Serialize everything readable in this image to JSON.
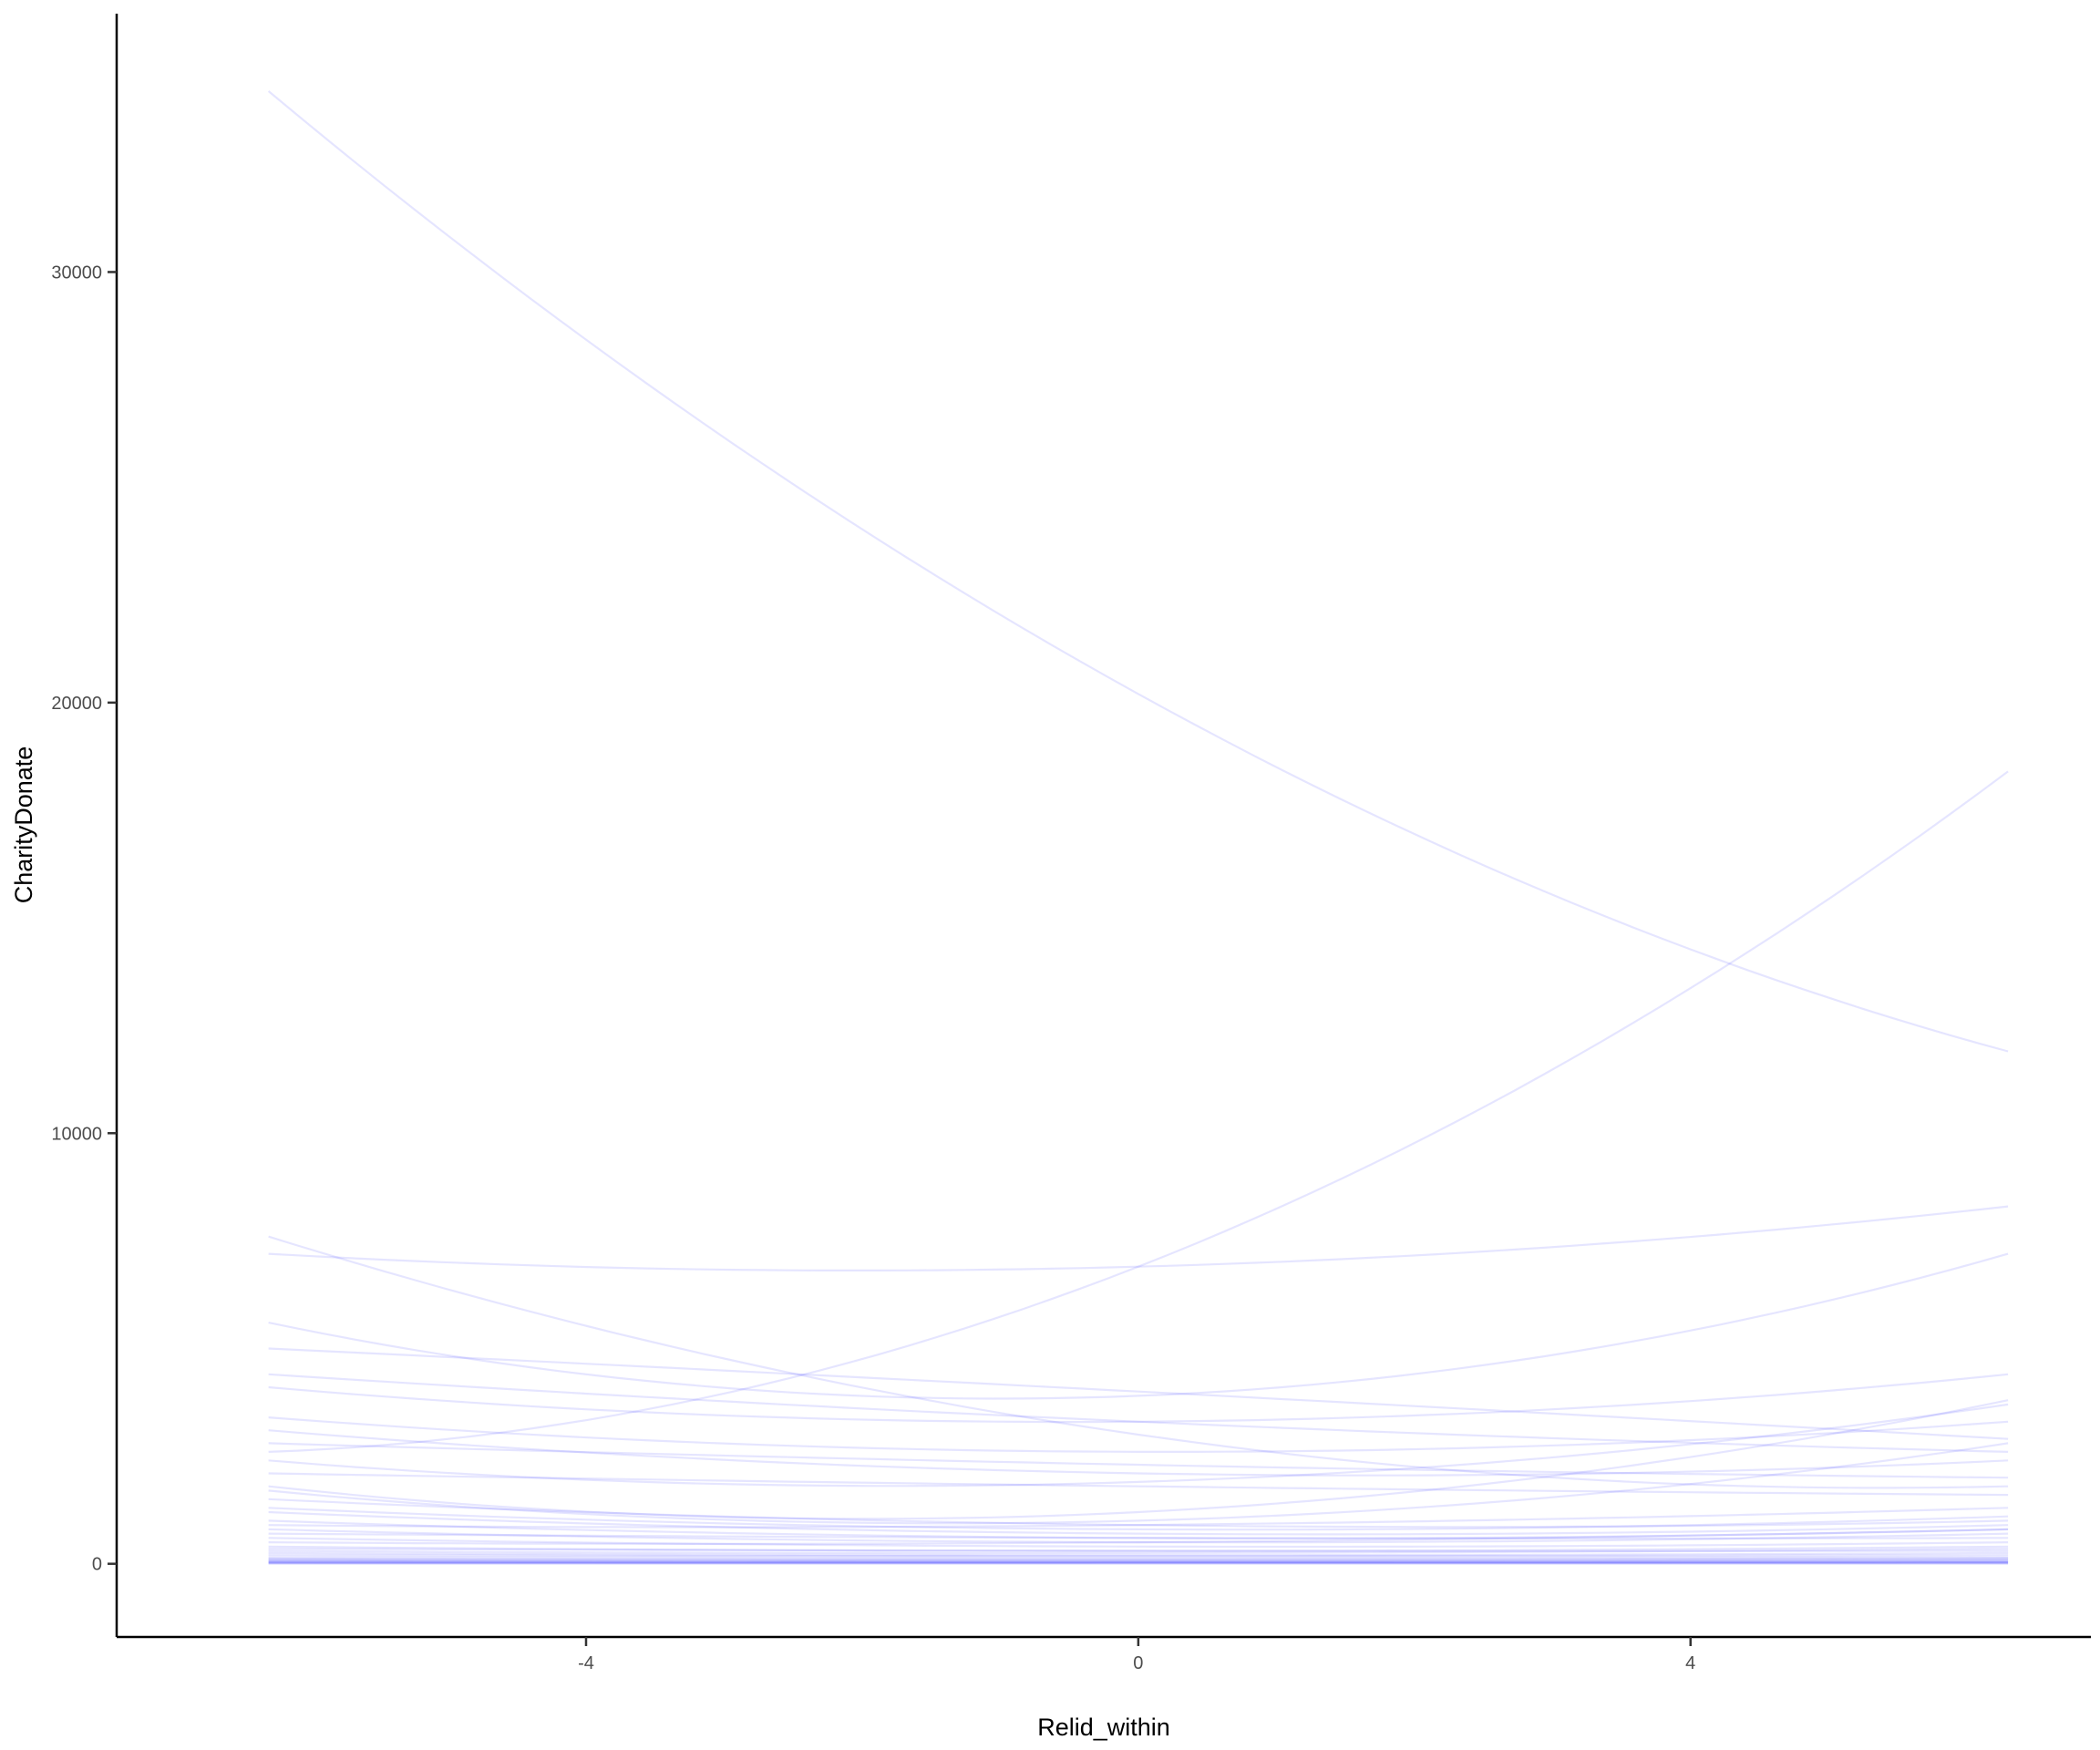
{
  "chart_data": {
    "type": "line",
    "title": "",
    "xlabel": "Relid_within",
    "ylabel": "CharityDonate",
    "xlim": [
      -7.4,
      6.9
    ],
    "ylim": [
      -1700,
      36000
    ],
    "x_ticks": [
      -4,
      0,
      4
    ],
    "y_ticks": [
      0,
      10000,
      20000,
      30000
    ],
    "x_tick_labels": [
      "-4",
      "0",
      "4"
    ],
    "y_tick_labels": [
      "0",
      "10000",
      "20000",
      "30000"
    ],
    "grid": false,
    "line_color": "#0000ff",
    "line_alpha": 0.1,
    "x_range": [
      -6.3,
      6.3
    ],
    "series": [
      {
        "name": "s1",
        "y_start": 34200,
        "y_mid": 20200,
        "y_end": 11900
      },
      {
        "name": "s2",
        "y_start": 2600,
        "y_mid": 6900,
        "y_end": 18400
      },
      {
        "name": "s3",
        "y_start": 7200,
        "y_mid": 6900,
        "y_end": 8300
      },
      {
        "name": "s4",
        "y_start": 5600,
        "y_mid": 3900,
        "y_end": 7200
      },
      {
        "name": "s5",
        "y_start": 7600,
        "y_mid": 3000,
        "y_end": 1800
      },
      {
        "name": "s6",
        "y_start": 5000,
        "y_mid": 4000,
        "y_end": 2900
      },
      {
        "name": "s7",
        "y_start": 4400,
        "y_mid": 3300,
        "y_end": 2600
      },
      {
        "name": "s8",
        "y_start": 4100,
        "y_mid": 3300,
        "y_end": 4400
      },
      {
        "name": "s9",
        "y_start": 3400,
        "y_mid": 2600,
        "y_end": 3300
      },
      {
        "name": "s10",
        "y_start": 3100,
        "y_mid": 2100,
        "y_end": 2400
      },
      {
        "name": "s11",
        "y_start": 2800,
        "y_mid": 2300,
        "y_end": 2000
      },
      {
        "name": "s12",
        "y_start": 2400,
        "y_mid": 1900,
        "y_end": 3700
      },
      {
        "name": "s13",
        "y_start": 2100,
        "y_mid": 1800,
        "y_end": 1600
      },
      {
        "name": "s14",
        "y_start": 1800,
        "y_mid": 1200,
        "y_end": 3800
      },
      {
        "name": "s15",
        "y_start": 1700,
        "y_mid": 1000,
        "y_end": 2800
      },
      {
        "name": "s16",
        "y_start": 1500,
        "y_mid": 900,
        "y_end": 1000
      },
      {
        "name": "s17",
        "y_start": 1300,
        "y_mid": 800,
        "y_end": 1100
      },
      {
        "name": "s18",
        "y_start": 1200,
        "y_mid": 700,
        "y_end": 900
      },
      {
        "name": "s19",
        "y_start": 1000,
        "y_mid": 600,
        "y_end": 800
      },
      {
        "name": "s20",
        "y_start": 900,
        "y_mid": 900,
        "y_end": 1300
      },
      {
        "name": "s21",
        "y_start": 800,
        "y_mid": 500,
        "y_end": 700
      },
      {
        "name": "s22",
        "y_start": 700,
        "y_mid": 600,
        "y_end": 600
      },
      {
        "name": "s23",
        "y_start": 600,
        "y_mid": 400,
        "y_end": 500
      },
      {
        "name": "s24",
        "y_start": 500,
        "y_mid": 500,
        "y_end": 800
      },
      {
        "name": "s25",
        "y_start": 400,
        "y_mid": 300,
        "y_end": 400
      },
      {
        "name": "s26",
        "y_start": 350,
        "y_mid": 300,
        "y_end": 300
      },
      {
        "name": "s27",
        "y_start": 300,
        "y_mid": 250,
        "y_end": 350
      },
      {
        "name": "s28",
        "y_start": 250,
        "y_mid": 200,
        "y_end": 250
      },
      {
        "name": "s29",
        "y_start": 200,
        "y_mid": 180,
        "y_end": 200
      },
      {
        "name": "s30",
        "y_start": 150,
        "y_mid": 150,
        "y_end": 150
      },
      {
        "name": "s31",
        "y_start": 120,
        "y_mid": 110,
        "y_end": 130
      },
      {
        "name": "s32",
        "y_start": 100,
        "y_mid": 90,
        "y_end": 100
      },
      {
        "name": "s33",
        "y_start": 80,
        "y_mid": 70,
        "y_end": 90
      },
      {
        "name": "s34",
        "y_start": 60,
        "y_mid": 60,
        "y_end": 60
      },
      {
        "name": "s35",
        "y_start": 50,
        "y_mid": 40,
        "y_end": 50
      },
      {
        "name": "s36",
        "y_start": 40,
        "y_mid": 35,
        "y_end": 40
      },
      {
        "name": "s37",
        "y_start": 30,
        "y_mid": 30,
        "y_end": 30
      },
      {
        "name": "s38",
        "y_start": 20,
        "y_mid": 20,
        "y_end": 25
      },
      {
        "name": "s39",
        "y_start": 10,
        "y_mid": 10,
        "y_end": 10
      },
      {
        "name": "s40",
        "y_start": 5,
        "y_mid": 5,
        "y_end": 5
      }
    ]
  }
}
